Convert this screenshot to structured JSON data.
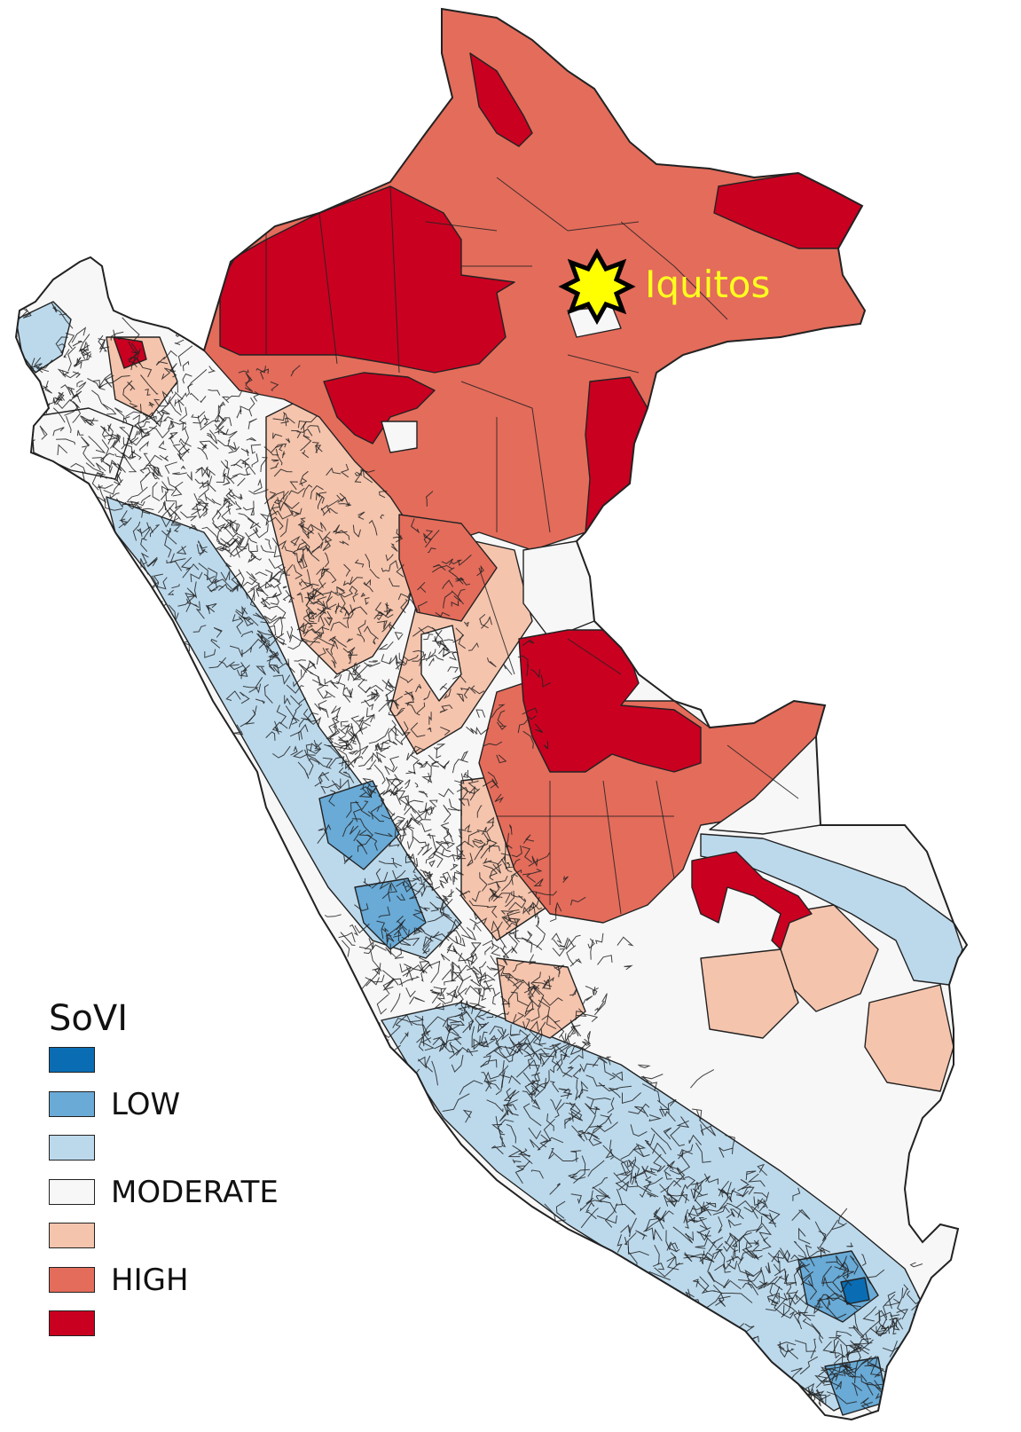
{
  "legend": {
    "title": "SoVI",
    "classes": [
      {
        "label": "",
        "color": "#0a6db4"
      },
      {
        "label": "LOW",
        "color": "#69aad6"
      },
      {
        "label": "",
        "color": "#bcd9ec"
      },
      {
        "label": "MODERATE",
        "color": "#f7f7f7"
      },
      {
        "label": "",
        "color": "#f5c4ad"
      },
      {
        "label": "HIGH",
        "color": "#e46c5b"
      },
      {
        "label": "",
        "color": "#c90020"
      }
    ]
  },
  "marker": {
    "city": "Iquitos",
    "icon": "star-icon",
    "label_color": "#ffff1e",
    "star_color": "#ffff00"
  }
}
